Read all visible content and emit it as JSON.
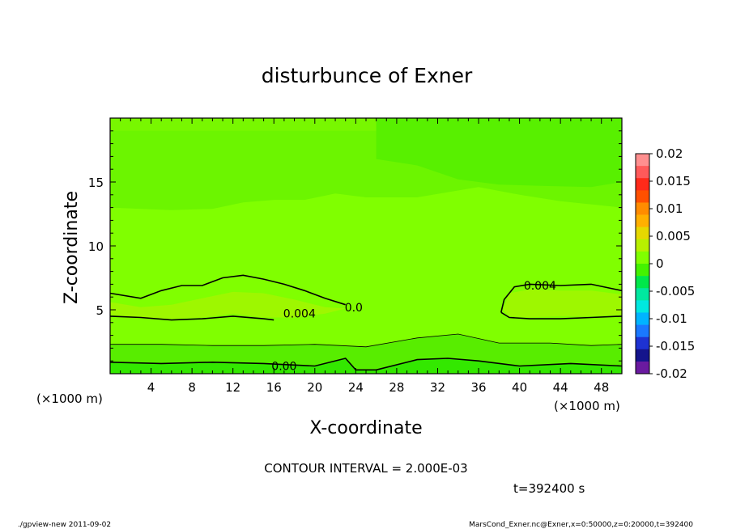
{
  "chart_data": {
    "type": "heatmap",
    "title": "disturbunce of Exner",
    "xlabel": "X-coordinate",
    "ylabel": "Z-coordinate",
    "x_unit_label": "(×1000 m)",
    "y_unit_label": "(×1000 m)",
    "xlim": [
      0,
      50
    ],
    "ylim": [
      0,
      20
    ],
    "x_ticks": [
      4,
      8,
      12,
      16,
      20,
      24,
      28,
      32,
      36,
      40,
      44,
      48
    ],
    "y_ticks": [
      5,
      10,
      15
    ],
    "contour_interval_text": "CONTOUR INTERVAL = 2.000E-03",
    "time_text": "t=392400 s",
    "footer_left": "./gpview-new   2011-09-02",
    "footer_right": "MarsCond_Exner.nc@Exner,x=0:50000,z=0:20000,t=392400",
    "colorbar": {
      "ticks": [
        "0.02",
        "0.015",
        "0.01",
        "0.005",
        "0",
        "-0.005",
        "-0.01",
        "-0.015",
        "-0.02"
      ],
      "levels": [
        0.02,
        0.0175,
        0.015,
        0.0125,
        0.01,
        0.0075,
        0.005,
        0.0025,
        0,
        -0.0025,
        -0.005,
        -0.0075,
        -0.01,
        -0.0125,
        -0.015,
        -0.0175,
        -0.02
      ],
      "colors": [
        "#ff8f8f",
        "#ff5a5a",
        "#ff2a1a",
        "#ff5000",
        "#ff8c00",
        "#ffb000",
        "#e6d800",
        "#b8f000",
        "#80ff00",
        "#44f200",
        "#00e84a",
        "#00e8a0",
        "#00e8e0",
        "#00b4ff",
        "#1a78ff",
        "#1e32d2",
        "#14148c",
        "#6a1aa0"
      ]
    },
    "contour_labels": [
      {
        "text": "0.004",
        "x": 18.5,
        "z": 4.7
      },
      {
        "text": "0.004",
        "x": 42.0,
        "z": 6.9
      },
      {
        "text": "0.00",
        "x": 17.0,
        "z": 0.6
      },
      {
        "text": "0.0",
        "x": 23.8,
        "z": 5.2
      }
    ],
    "contours": [
      {
        "level": "0.004",
        "points": [
          [
            0,
            6.3
          ],
          [
            3,
            5.9
          ],
          [
            5,
            6.5
          ],
          [
            7,
            6.9
          ],
          [
            9,
            6.9
          ],
          [
            11,
            7.5
          ],
          [
            13,
            7.7
          ],
          [
            15,
            7.4
          ],
          [
            17,
            7.0
          ],
          [
            19,
            6.5
          ],
          [
            21,
            5.9
          ],
          [
            23,
            5.4
          ]
        ]
      },
      {
        "level": "0.004",
        "points": [
          [
            0,
            4.5
          ],
          [
            3,
            4.4
          ],
          [
            6,
            4.2
          ],
          [
            9,
            4.3
          ],
          [
            12,
            4.5
          ],
          [
            15,
            4.3
          ],
          [
            16,
            4.2
          ]
        ]
      },
      {
        "level": "0.004",
        "points": [
          [
            38.2,
            4.8
          ],
          [
            38.5,
            5.8
          ],
          [
            39.5,
            6.8
          ],
          [
            41,
            7.0
          ],
          [
            44,
            6.9
          ],
          [
            47,
            7.0
          ],
          [
            50,
            6.5
          ]
        ]
      },
      {
        "level": "0.004",
        "points": [
          [
            38.2,
            4.8
          ],
          [
            39,
            4.4
          ],
          [
            41,
            4.3
          ],
          [
            44,
            4.3
          ],
          [
            47,
            4.4
          ],
          [
            50,
            4.5
          ]
        ]
      },
      {
        "level": "0.002",
        "points": [
          [
            0,
            2.3
          ],
          [
            5,
            2.3
          ],
          [
            10,
            2.2
          ],
          [
            15,
            2.2
          ],
          [
            20,
            2.3
          ],
          [
            25,
            2.1
          ],
          [
            30,
            2.8
          ],
          [
            34,
            3.1
          ],
          [
            38,
            2.4
          ],
          [
            43,
            2.4
          ],
          [
            47,
            2.2
          ],
          [
            50,
            2.3
          ]
        ]
      },
      {
        "level": "0.000",
        "points": [
          [
            0,
            0.9
          ],
          [
            5,
            0.8
          ],
          [
            10,
            0.9
          ],
          [
            15,
            0.8
          ],
          [
            20,
            0.6
          ],
          [
            23,
            1.2
          ],
          [
            24,
            0.3
          ],
          [
            26,
            0.3
          ],
          [
            30,
            1.1
          ],
          [
            33,
            1.2
          ],
          [
            36,
            1.0
          ],
          [
            40,
            0.6
          ],
          [
            45,
            0.8
          ],
          [
            50,
            0.6
          ]
        ]
      }
    ],
    "regions": [
      {
        "name": "upper",
        "color": "#6cf500",
        "points": [
          [
            0,
            20
          ],
          [
            50,
            20
          ],
          [
            50,
            13
          ],
          [
            44,
            13.5
          ],
          [
            40,
            14
          ],
          [
            36,
            14.6
          ],
          [
            30,
            13.8
          ],
          [
            25,
            13.8
          ],
          [
            22,
            14.1
          ],
          [
            19,
            13.6
          ],
          [
            16,
            13.6
          ],
          [
            13,
            13.4
          ],
          [
            10,
            12.9
          ],
          [
            6,
            12.8
          ],
          [
            3,
            12.9
          ],
          [
            0,
            13
          ]
        ]
      },
      {
        "name": "top",
        "color": "#78f700",
        "points": [
          [
            0,
            20
          ],
          [
            50,
            20
          ],
          [
            50,
            19
          ],
          [
            25,
            19
          ],
          [
            0,
            19
          ]
        ]
      },
      {
        "name": "upper-right",
        "color": "#58f000",
        "points": [
          [
            26,
            20
          ],
          [
            50,
            20
          ],
          [
            50,
            15
          ],
          [
            47,
            14.6
          ],
          [
            42,
            14.7
          ],
          [
            38,
            14.8
          ],
          [
            34,
            15.2
          ],
          [
            30,
            16.3
          ],
          [
            26,
            16.8
          ]
        ]
      },
      {
        "name": "bubble-left",
        "color": "#9ef700",
        "points": [
          [
            0,
            5.6
          ],
          [
            3,
            5.2
          ],
          [
            6,
            5.4
          ],
          [
            9,
            5.9
          ],
          [
            12,
            6.4
          ],
          [
            15,
            6.3
          ],
          [
            18,
            5.8
          ],
          [
            21,
            5.2
          ],
          [
            23,
            5.1
          ],
          [
            21,
            4.7
          ],
          [
            18,
            4.4
          ],
          [
            15,
            4.4
          ],
          [
            12,
            4.7
          ],
          [
            9,
            4.4
          ],
          [
            6,
            4.3
          ],
          [
            3,
            4.4
          ],
          [
            0,
            4.6
          ]
        ]
      },
      {
        "name": "bubble-right",
        "color": "#9ef700",
        "points": [
          [
            38.4,
            5.0
          ],
          [
            39,
            6.3
          ],
          [
            41,
            6.6
          ],
          [
            44,
            6.5
          ],
          [
            47,
            6.5
          ],
          [
            50,
            6.2
          ],
          [
            50,
            4.6
          ],
          [
            47,
            4.5
          ],
          [
            44,
            4.5
          ],
          [
            41,
            4.4
          ],
          [
            39,
            4.5
          ]
        ]
      },
      {
        "name": "lower",
        "color": "#58ed00",
        "points": [
          [
            0,
            2.3
          ],
          [
            5,
            2.3
          ],
          [
            10,
            2.2
          ],
          [
            15,
            2.2
          ],
          [
            20,
            2.3
          ],
          [
            25,
            2.1
          ],
          [
            30,
            2.8
          ],
          [
            34,
            3.1
          ],
          [
            38,
            2.4
          ],
          [
            43,
            2.4
          ],
          [
            47,
            2.2
          ],
          [
            50,
            2.3
          ],
          [
            50,
            0
          ],
          [
            0,
            0
          ]
        ]
      },
      {
        "name": "near-zero",
        "color": "#33e800",
        "points": [
          [
            0,
            0.9
          ],
          [
            5,
            0.8
          ],
          [
            10,
            0.9
          ],
          [
            15,
            0.8
          ],
          [
            20,
            0.6
          ],
          [
            23,
            1.2
          ],
          [
            24,
            0.3
          ],
          [
            26,
            0.3
          ],
          [
            30,
            1.1
          ],
          [
            33,
            1.2
          ],
          [
            36,
            1.0
          ],
          [
            40,
            0.6
          ],
          [
            45,
            0.8
          ],
          [
            50,
            0.6
          ],
          [
            50,
            0
          ],
          [
            0,
            0
          ]
        ]
      }
    ]
  }
}
